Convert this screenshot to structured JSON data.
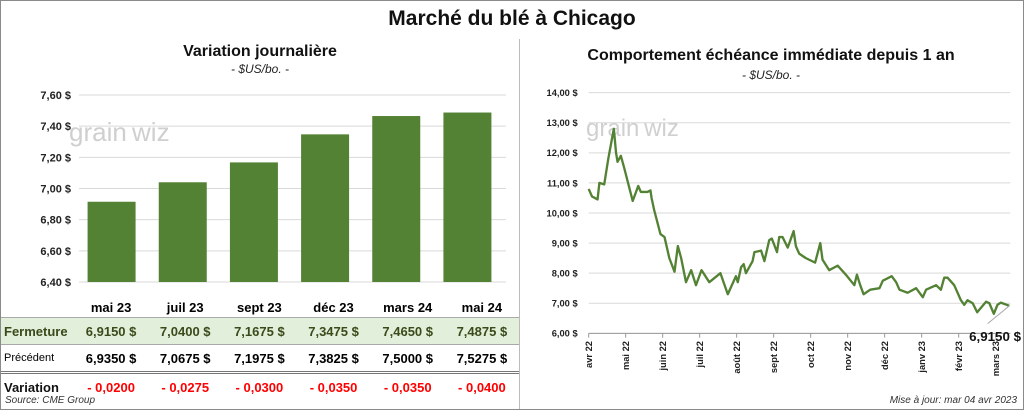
{
  "title": "Marché du blé à Chicago",
  "left": {
    "title": "Variation journalière",
    "unit": "- $US/bo. -"
  },
  "right": {
    "title": "Comportement  échéance immédiate depuis 1 an",
    "unit": "- $US/bo. -",
    "last_value_label": "6,9150 $"
  },
  "logo": "grainwiz",
  "table": {
    "rows": [
      {
        "label": "Fermeture",
        "values": [
          "6,9150  $",
          "7,0400  $",
          "7,1675  $",
          "7,3475  $",
          "7,4650  $",
          "7,4875  $"
        ]
      },
      {
        "label": "Précédent",
        "values": [
          "6,9350  $",
          "7,0675  $",
          "7,1975  $",
          "7,3825  $",
          "7,5000  $",
          "7,5275  $"
        ]
      },
      {
        "label": "Variation",
        "values": [
          "- 0,0200",
          "- 0,0275",
          "- 0,0300",
          "- 0,0350",
          "- 0,0350",
          "- 0,0400"
        ]
      }
    ]
  },
  "source": "Source: CME Group",
  "updated": "Mise à jour: mar 04 avr 2023",
  "colors": {
    "bar": "#548235",
    "line": "#548235",
    "negative": "#ff0000",
    "highlight_row": "#e2efda"
  },
  "chart_data": [
    {
      "type": "bar",
      "title": "Variation journalière",
      "categories": [
        "mai 23",
        "juil 23",
        "sept 23",
        "déc 23",
        "mars 24",
        "mai 24"
      ],
      "values": [
        6.915,
        7.04,
        7.1675,
        7.3475,
        7.465,
        7.4875
      ],
      "ylim": [
        6.4,
        7.6
      ],
      "yticks": [
        6.4,
        6.6,
        6.8,
        7.0,
        7.2,
        7.4,
        7.6
      ],
      "ytick_labels": [
        "6,40 $",
        "6,60 $",
        "6,80 $",
        "7,00 $",
        "7,20 $",
        "7,40 $",
        "7,60 $"
      ],
      "grid": true
    },
    {
      "type": "line",
      "title": "Comportement  échéance immédiate depuis 1 an",
      "xlabel_note": "months since avr 22",
      "xtick_labels": [
        "avr 22",
        "mai 22",
        "juin 22",
        "juil 22",
        "août 22",
        "sept 22",
        "oct 22",
        "nov 22",
        "déc 22",
        "janv 23",
        "févr 23",
        "mars 23"
      ],
      "xlim": [
        0,
        11.37
      ],
      "ylim": [
        6,
        14
      ],
      "yticks": [
        6,
        7,
        8,
        9,
        10,
        11,
        12,
        13,
        14
      ],
      "ytick_labels": [
        "6,00 $",
        "7,00 $",
        "8,00 $",
        "9,00 $",
        "10,00 $",
        "11,00 $",
        "12,00 $",
        "13,00 $",
        "14,00 $"
      ],
      "grid": true,
      "x": [
        0,
        0.09,
        0.24,
        0.29,
        0.42,
        0.53,
        0.68,
        0.74,
        0.78,
        0.87,
        0.96,
        1.19,
        1.34,
        1.41,
        1.59,
        1.67,
        1.7,
        1.77,
        1.94,
        2.05,
        2.18,
        2.32,
        2.41,
        2.5,
        2.63,
        2.77,
        2.9,
        3.05,
        3.26,
        3.56,
        3.76,
        3.98,
        4.03,
        4.12,
        4.19,
        4.25,
        4.43,
        4.48,
        4.66,
        4.75,
        4.88,
        4.95,
        5.09,
        5.15,
        5.24,
        5.38,
        5.54,
        5.6,
        5.69,
        5.87,
        6.12,
        6.26,
        6.32,
        6.5,
        6.73,
        6.95,
        7.18,
        7.25,
        7.34,
        7.43,
        7.61,
        7.86,
        7.95,
        8.19,
        8.31,
        8.4,
        8.62,
        8.85,
        9.03,
        9.12,
        9.39,
        9.52,
        9.61,
        9.7,
        9.88,
        10.06,
        10.15,
        10.24,
        10.38,
        10.5,
        10.74,
        10.83,
        10.95,
        11.05,
        11.14,
        11.37
      ],
      "y": [
        10.8,
        10.55,
        10.45,
        11.0,
        10.95,
        11.8,
        12.8,
        12.0,
        11.7,
        11.9,
        11.5,
        10.4,
        10.9,
        10.7,
        10.7,
        10.75,
        10.5,
        10.1,
        9.3,
        9.2,
        8.5,
        8.05,
        8.9,
        8.5,
        7.7,
        8.1,
        7.6,
        8.1,
        7.7,
        8.0,
        7.3,
        7.9,
        7.7,
        8.2,
        8.3,
        8.0,
        8.4,
        8.7,
        8.75,
        8.4,
        9.1,
        9.15,
        8.7,
        9.2,
        9.2,
        8.85,
        9.4,
        8.9,
        8.65,
        8.5,
        8.35,
        9.0,
        8.45,
        8.1,
        8.25,
        7.95,
        7.6,
        7.95,
        7.6,
        7.3,
        7.45,
        7.5,
        7.75,
        7.9,
        7.7,
        7.45,
        7.35,
        7.5,
        7.2,
        7.45,
        7.6,
        7.45,
        7.85,
        7.85,
        7.6,
        7.1,
        6.95,
        7.1,
        7.0,
        6.7,
        7.05,
        7.0,
        6.65,
        6.95,
        7.02,
        6.915
      ],
      "annotation": "6,9150 $"
    }
  ]
}
